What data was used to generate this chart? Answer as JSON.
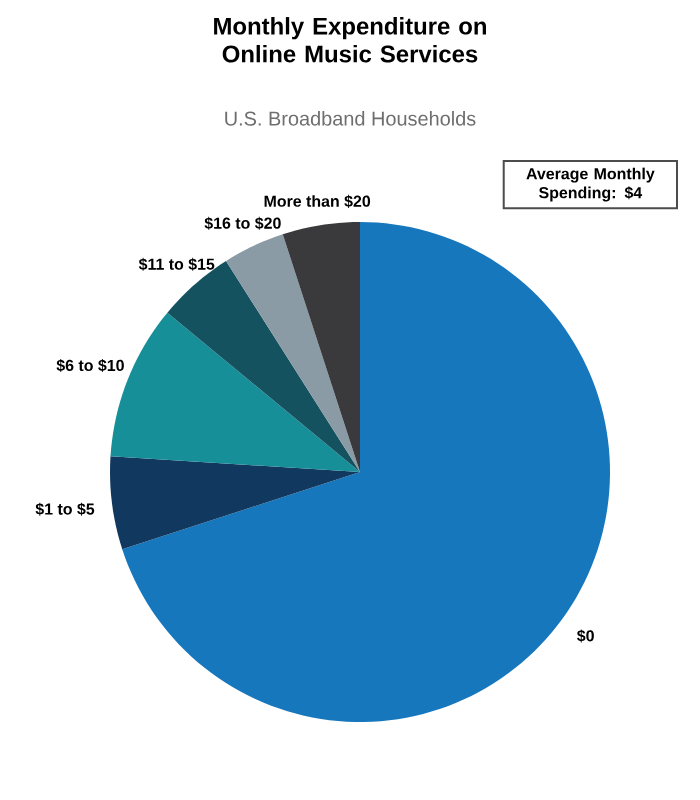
{
  "chart_data": {
    "type": "pie",
    "title": "Monthly Expenditure on Online Music Services",
    "subtitle": "U.S. Broadband Households",
    "categories": [
      "$0",
      "$1 to $5",
      "$6 to $10",
      "$11 to $15",
      "$16 to $20",
      "More than $20"
    ],
    "values": [
      70,
      6,
      10,
      5,
      4,
      5
    ],
    "colors": [
      "#1777bc",
      "#11385e",
      "#178f99",
      "#155260",
      "#8a9ba6",
      "#3a3a3d"
    ],
    "annotations": [
      "Average Monthly Spending: $4"
    ]
  }
}
